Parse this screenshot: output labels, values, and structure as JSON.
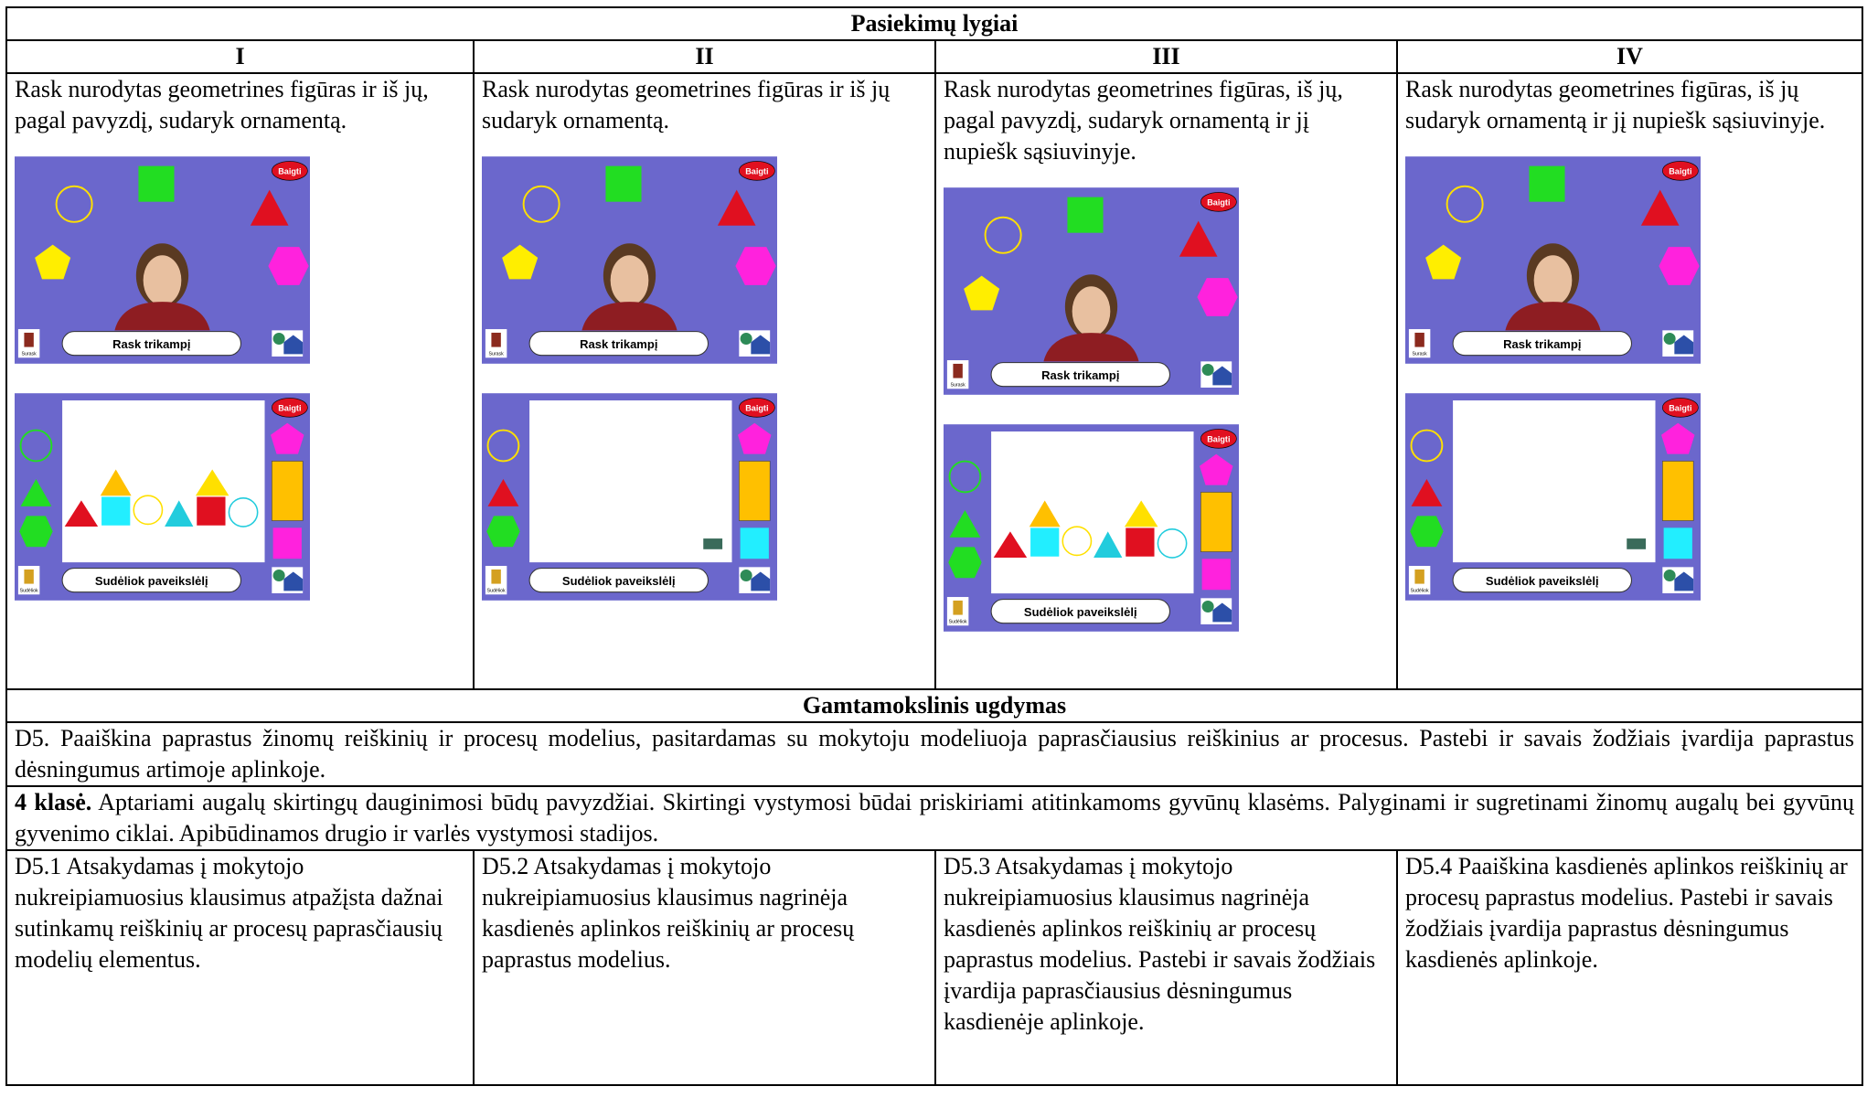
{
  "table": {
    "header": "Pasiekimų lygiai",
    "levels": [
      "I",
      "II",
      "III",
      "IV"
    ],
    "level_texts": [
      "Rask nurodytas geometrines figūras ir iš jų, pagal pavyzdį, sudaryk ornamentą.",
      "Rask nurodytas geometrines figūras ir iš jų sudaryk ornamentą.",
      "Rask nurodytas geometrines figūras, iš jų, pagal pavyzdį, sudaryk ornamentą ir jį nupiešk sąsiuvinyje.",
      "Rask nurodytas geometrines figūras, iš jų sudaryk ornamentą ir jį nupiešk sąsiuvinyje."
    ],
    "screens": [
      {
        "find": {
          "finish": "Baigti",
          "prompt": "Rask trikampį",
          "icon": "Surask"
        },
        "build": {
          "finish": "Baigti",
          "prompt": "Sudėliok paveikslėlį",
          "icon": "Sudėliok"
        }
      },
      {
        "find": {
          "finish": "Baigti",
          "prompt": "Rask trikampį",
          "icon": "Surask"
        },
        "build": {
          "finish": "Baigti",
          "prompt": "Sudėliok paveikslėlį",
          "icon": "Sudėliok"
        }
      },
      {
        "find": {
          "finish": "Baigti",
          "prompt": "Rask trikampį",
          "icon": "Surask"
        },
        "build": {
          "finish": "Baigti",
          "prompt": "Sudėliok paveikslėlį",
          "icon": "Sudėliok"
        }
      },
      {
        "find": {
          "finish": "Baigti",
          "prompt": "Rask trikampį",
          "icon": "Surask"
        },
        "build": {
          "finish": "Baigti",
          "prompt": "Sudėliok paveikslėlį",
          "icon": "Sudėliok"
        }
      }
    ],
    "section": "Gamtamokslinis ugdymas",
    "d5": "D5. Paaiškina paprastus žinomų reiškinių ir procesų modelius, pasitardamas su mokytoju modeliuoja paprasčiausius reiškinius ar procesus. Pastebi ir savais žodžiais įvardija paprastus dėsningumus artimoje aplinkoje.",
    "grade_label": "4 klasė.",
    "grade_text": "Aptariami augalų skirtingų dauginimosi būdų pavyzdžiai. Skirtingi vystymosi būdai priskiriami atitinkamoms gyvūnų klasėms. Palyginami ir sugretinami žinomų augalų bei gyvūnų gyvenimo ciklai. Apibūdinamos drugio ir varlės vystymosi stadijos.",
    "descriptors": [
      "D5.1 Atsakydamas į mokytojo nukreipiamuosius klausimus atpažįsta dažnai sutinkamų reiškinių ar procesų paprasčiausių modelių elementus.",
      "D5.2 Atsakydamas į mokytojo nukreipiamuosius klausimus nagrinėja kasdienės aplinkos reiškinių ar procesų paprastus modelius.",
      "D5.3 Atsakydamas į mokytojo nukreipiamuosius klausimus nagrinėja kasdienės aplinkos reiškinių ar procesų paprastus modelius. Pastebi ir savais žodžiais įvardija paprasčiausius dėsningumus kasdienėje aplinkoje.",
      "D5.4 Paaiškina kasdienės aplinkos reiškinių ar procesų paprastus modelius. Pastebi ir savais žodžiais įvardija paprastus dėsningumus kasdienės aplinkoje."
    ]
  }
}
